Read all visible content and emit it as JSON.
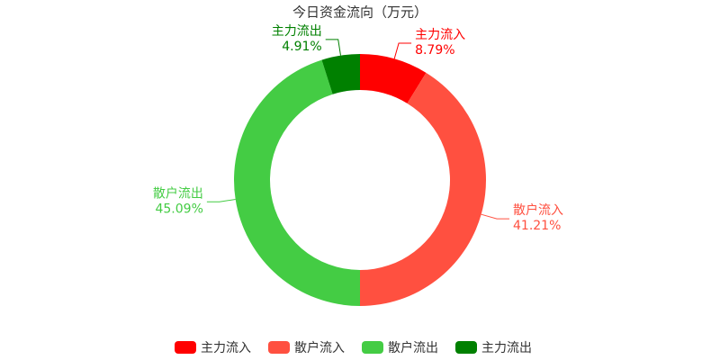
{
  "chart_data": {
    "type": "donut",
    "title": "今日资金流向（万元）",
    "categories": [
      "主力流入",
      "散户流入",
      "散户流出",
      "主力流出"
    ],
    "values": [
      8.79,
      41.21,
      45.09,
      4.91
    ],
    "value_labels": [
      "8.79%",
      "41.21%",
      "45.09%",
      "4.91%"
    ],
    "colors": [
      "#ff0000",
      "#ff5040",
      "#44cc44",
      "#008000"
    ],
    "legend": "bottom"
  }
}
